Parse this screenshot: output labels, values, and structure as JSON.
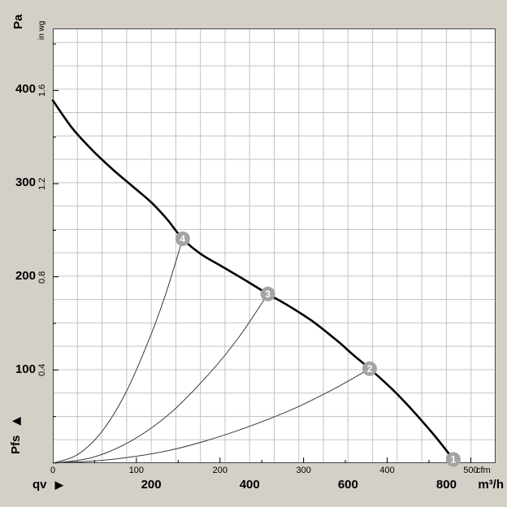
{
  "colors": {
    "page_bg": "#d4d0c8",
    "plot_bg": "#ffffff",
    "grid": "#c3c3c3",
    "axis": "#444444",
    "curve": "#000000",
    "thin_curve": "#3a3a3a",
    "marker_fill": "#a3a3a3",
    "marker_text": "#ffffff"
  },
  "labels": {
    "y_unit_primary": "Pa",
    "y_unit_secondary": "in wg",
    "y_axis_name": "Pfs",
    "x_axis_name": "qv",
    "x_unit_primary": "m³/h",
    "x_unit_secondary": "cfm",
    "arrow": "▶"
  },
  "chart_data": {
    "type": "line",
    "title": "",
    "xlabel": "qv",
    "ylabel": "Pfs",
    "x_unit_outer": "m³/h",
    "x_unit_inner": "cfm",
    "y_unit_outer": "Pa",
    "y_unit_inner": "in wg",
    "xlim_m3h": [
      0,
      900
    ],
    "ylim_pa": [
      0,
      465
    ],
    "cfm_to_m3h": 1.699,
    "inwg_to_pa": 249.1,
    "grid": {
      "x_step_m3h": 50,
      "y_step_pa": 25
    },
    "x_ticks_cfm": [
      0,
      100,
      200,
      300,
      400,
      500
    ],
    "x_ticks_m3h": [
      200,
      400,
      600,
      800
    ],
    "y_ticks_pa": [
      100,
      200,
      300,
      400
    ],
    "y_ticks_inwg": [
      0.4,
      0.8,
      1.2,
      1.6
    ],
    "fan_curve": {
      "name": "fan-characteristic-curve",
      "points_m3h_pa": [
        [
          0,
          388
        ],
        [
          40,
          358
        ],
        [
          80,
          335
        ],
        [
          120,
          315
        ],
        [
          160,
          297
        ],
        [
          200,
          279
        ],
        [
          232,
          261
        ],
        [
          264,
          240
        ],
        [
          300,
          224
        ],
        [
          345,
          210
        ],
        [
          390,
          196
        ],
        [
          437,
          181
        ],
        [
          480,
          168
        ],
        [
          530,
          151
        ],
        [
          580,
          130
        ],
        [
          610,
          116
        ],
        [
          644,
          101
        ],
        [
          690,
          79
        ],
        [
          730,
          57
        ],
        [
          775,
          30
        ],
        [
          814,
          4
        ]
      ]
    },
    "system_curves": [
      {
        "to_marker": "4",
        "points_m3h_pa": [
          [
            0,
            0
          ],
          [
            50,
            9
          ],
          [
            100,
            34
          ],
          [
            150,
            77
          ],
          [
            200,
            138
          ],
          [
            232,
            185
          ],
          [
            264,
            240
          ]
        ]
      },
      {
        "to_marker": "3",
        "points_m3h_pa": [
          [
            0,
            0
          ],
          [
            80,
            6
          ],
          [
            160,
            24
          ],
          [
            240,
            54
          ],
          [
            320,
            97
          ],
          [
            380,
            136
          ],
          [
            437,
            181
          ]
        ]
      },
      {
        "to_marker": "2",
        "points_m3h_pa": [
          [
            0,
            0
          ],
          [
            120,
            4
          ],
          [
            240,
            14
          ],
          [
            360,
            32
          ],
          [
            480,
            56
          ],
          [
            570,
            79
          ],
          [
            644,
            101
          ]
        ]
      }
    ],
    "markers": [
      {
        "label": "4",
        "m3h": 264,
        "pa": 240
      },
      {
        "label": "3",
        "m3h": 437,
        "pa": 181
      },
      {
        "label": "2",
        "m3h": 644,
        "pa": 101
      },
      {
        "label": "1",
        "m3h": 814,
        "pa": 4
      }
    ]
  }
}
